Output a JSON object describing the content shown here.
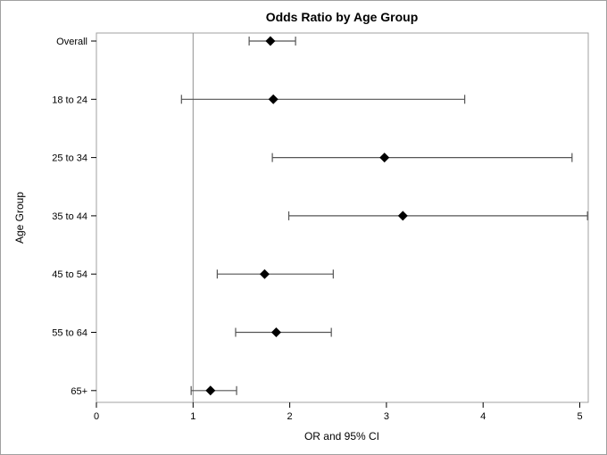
{
  "chart_data": {
    "type": "scatter",
    "title": "Odds Ratio by Age Group",
    "xlabel": "OR and 95% CI",
    "ylabel": "Age Group",
    "xlim": [
      0,
      5.1
    ],
    "xticks": [
      "0",
      "1",
      "2",
      "3",
      "4",
      "5"
    ],
    "reference_line_x": 1,
    "categories": [
      "Overall",
      "18 to 24",
      "25 to 34",
      "35 to 44",
      "45 to 54",
      "55 to 64",
      "65+"
    ],
    "series": [
      {
        "values": [
          1.8,
          1.83,
          2.98,
          3.17,
          1.74,
          1.86,
          1.18
        ],
        "lower": [
          1.58,
          0.88,
          1.82,
          1.99,
          1.25,
          1.44,
          0.98
        ],
        "upper": [
          2.06,
          3.81,
          4.92,
          5.08,
          2.45,
          2.43,
          1.45
        ]
      }
    ],
    "marker": "diamond",
    "grid": false,
    "legend": "none"
  }
}
